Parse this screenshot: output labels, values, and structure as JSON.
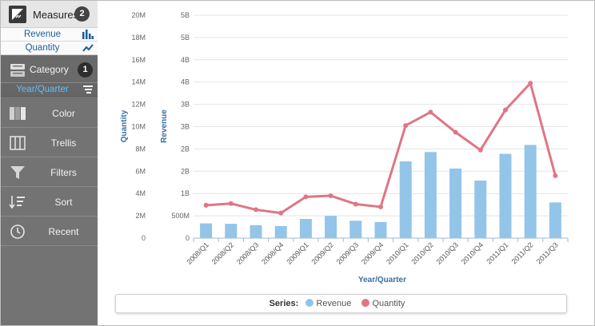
{
  "sidebar": {
    "measures": {
      "label": "Measures",
      "badge": "2",
      "icon": "measures-icon"
    },
    "measure_items": [
      {
        "label": "Revenue",
        "icon": "bar-chart-icon"
      },
      {
        "label": "Quantity",
        "icon": "line-chart-icon"
      }
    ],
    "category": {
      "label": "Category",
      "badge": "1",
      "icon": "category-icon"
    },
    "category_items": [
      {
        "label": "Year/Quarter",
        "icon": "sort-icon"
      }
    ],
    "tools": [
      {
        "label": "Color",
        "icon": "color-icon"
      },
      {
        "label": "Trellis",
        "icon": "trellis-icon"
      },
      {
        "label": "Filters",
        "icon": "filter-icon"
      },
      {
        "label": "Sort",
        "icon": "sort-icon"
      },
      {
        "label": "Recent",
        "icon": "clock-icon"
      }
    ]
  },
  "colors": {
    "revenue": "#92c5e8",
    "quantity": "#e07585",
    "axis_title": "#3a6f9f"
  },
  "chart_data": {
    "type": "bar",
    "categories": [
      "2008/Q1",
      "2008/Q2",
      "2008/Q3",
      "2008/Q4",
      "2009/Q1",
      "2009/Q2",
      "2009/Q3",
      "2009/Q4",
      "2010/Q1",
      "2010/Q2",
      "2010/Q3",
      "2010/Q4",
      "2011/Q1",
      "2011/Q2",
      "2011/Q3"
    ],
    "xlabel": "Year/Quarter",
    "legend_title": "Series:",
    "legend_position": "bottom",
    "grid": true,
    "axes": {
      "quantity": {
        "title": "Quantity",
        "ylim": [
          0,
          20000000
        ],
        "ticks": [
          0,
          2000000,
          4000000,
          6000000,
          8000000,
          10000000,
          12000000,
          14000000,
          16000000,
          18000000,
          20000000
        ],
        "tick_labels": [
          "0",
          "2M",
          "4M",
          "6M",
          "8M",
          "10M",
          "12M",
          "14M",
          "16M",
          "18M",
          "20M"
        ]
      },
      "revenue": {
        "title": "Revenue",
        "ylim": [
          0,
          5000000000
        ],
        "ticks": [
          0,
          500000000,
          1000000000,
          1500000000,
          2000000000,
          2500000000,
          3000000000,
          3500000000,
          4000000000,
          4500000000,
          5000000000
        ],
        "tick_labels": [
          "0",
          "500M",
          "1B",
          "2B",
          "2B",
          "3B",
          "3B",
          "4B",
          "4B",
          "5B",
          "5B"
        ]
      }
    },
    "series": [
      {
        "name": "Revenue",
        "type": "bar",
        "axis": "revenue",
        "values": [
          330000000,
          320000000,
          290000000,
          270000000,
          430000000,
          500000000,
          390000000,
          360000000,
          1720000000,
          1930000000,
          1560000000,
          1290000000,
          1890000000,
          2090000000,
          800000000
        ]
      },
      {
        "name": "Quantity",
        "type": "line",
        "axis": "quantity",
        "values": [
          2950000,
          3100000,
          2550000,
          2250000,
          3700000,
          3800000,
          3050000,
          2800000,
          10100000,
          11300000,
          9500000,
          7900000,
          11500000,
          13900000,
          5600000
        ]
      }
    ]
  }
}
